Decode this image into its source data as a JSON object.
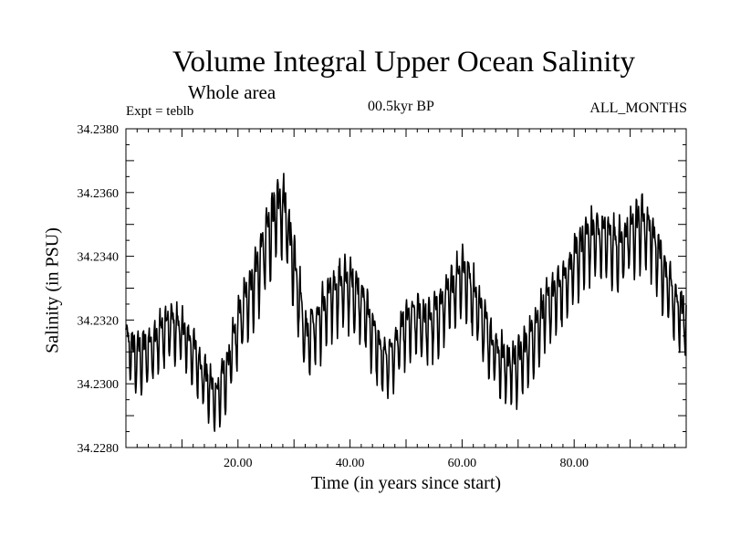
{
  "chart_data": {
    "type": "line",
    "title": "Volume Integral Upper Ocean Salinity",
    "subtitle": "Whole area",
    "experiment": "Expt = teblb",
    "period": "00.5kyr BP",
    "months": "ALL_MONTHS",
    "xlabel": "Time (in years since start)",
    "ylabel": "Salinity (in PSU)",
    "xlim": [
      0,
      100
    ],
    "ylim": [
      34.228,
      34.238
    ],
    "x_ticks": [
      20,
      40,
      60,
      80
    ],
    "x_tick_labels": [
      "20.00",
      "40.00",
      "60.00",
      "80.00"
    ],
    "y_ticks": [
      34.228,
      34.23,
      34.232,
      34.234,
      34.236,
      34.238
    ],
    "y_tick_labels": [
      "34.2280",
      "34.2300",
      "34.2320",
      "34.2340",
      "34.2360",
      "34.2380"
    ],
    "sampling": "monthly, seasonal cycle",
    "series": [
      {
        "name": "Salinity",
        "color": "#000000",
        "x": [
          0,
          2,
          4,
          6,
          8,
          10,
          12,
          14,
          16,
          18,
          20,
          22,
          24,
          26,
          28,
          30,
          32,
          34,
          36,
          38,
          40,
          42,
          44,
          46,
          48,
          50,
          52,
          54,
          56,
          58,
          60,
          62,
          64,
          66,
          68,
          70,
          72,
          74,
          76,
          78,
          80,
          82,
          84,
          86,
          88,
          90,
          92,
          94,
          96,
          98,
          100
        ],
        "base": [
          34.2312,
          34.2308,
          34.231,
          34.2315,
          34.2318,
          34.2316,
          34.231,
          34.2302,
          34.2295,
          34.2303,
          34.2318,
          34.2328,
          34.2338,
          34.235,
          34.2356,
          34.2338,
          34.2315,
          34.2318,
          34.2325,
          34.233,
          34.233,
          34.2326,
          34.2316,
          34.2306,
          34.231,
          34.2318,
          34.232,
          34.2318,
          34.2322,
          34.2328,
          34.2335,
          34.2328,
          34.2318,
          34.231,
          34.2305,
          34.2306,
          34.2312,
          34.232,
          34.2326,
          34.233,
          34.2338,
          34.2344,
          34.2346,
          34.2345,
          34.2342,
          34.2346,
          34.235,
          34.2345,
          34.2335,
          34.2325,
          34.232
        ],
        "amplitude": [
          0.0013,
          0.0013,
          0.0013,
          0.0013,
          0.0012,
          0.0012,
          0.0012,
          0.0012,
          0.0012,
          0.0013,
          0.0013,
          0.0014,
          0.0016,
          0.0017,
          0.0017,
          0.0016,
          0.0014,
          0.0014,
          0.0014,
          0.0014,
          0.0014,
          0.0013,
          0.0013,
          0.0013,
          0.0013,
          0.0013,
          0.0013,
          0.0013,
          0.0013,
          0.0013,
          0.0014,
          0.0014,
          0.0013,
          0.0013,
          0.0013,
          0.0013,
          0.0013,
          0.0013,
          0.0013,
          0.0013,
          0.0014,
          0.0014,
          0.0014,
          0.0014,
          0.0014,
          0.0014,
          0.0015,
          0.0015,
          0.0014,
          0.0014,
          0.0013
        ]
      }
    ]
  }
}
